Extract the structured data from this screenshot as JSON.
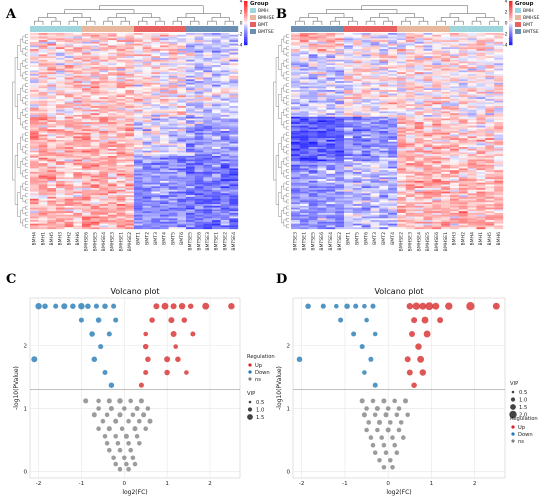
{
  "panels": {
    "A": "A",
    "B": "B",
    "C": "C",
    "D": "D"
  },
  "heatmap_legend": {
    "group_title": "Group",
    "groups": [
      "BMH",
      "BMHSE",
      "BMT",
      "BMTSE"
    ],
    "scale_ticks": [
      "4",
      "2",
      "0",
      "-2",
      "-4"
    ]
  },
  "colors": {
    "BMH": "#9fd6de",
    "BMHSE": "#e8b79c",
    "BMT": "#e86060",
    "BMTSE": "#6a8fb3",
    "up": "#d62728",
    "down": "#1f77b4",
    "ns": "#808080",
    "heat_high": "#ff0000",
    "heat_mid": "#ffffff",
    "heat_low": "#0000ff"
  },
  "chart_data": [
    {
      "type": "heatmap",
      "panel": "A",
      "columns": [
        "BMH4",
        "BMH1",
        "BMH5",
        "BMH3",
        "BMH2",
        "BMH6",
        "BMHSE6",
        "BMHSE5",
        "BMHSE4",
        "BMHSE3",
        "BMHSE1",
        "BMHSE2",
        "BMT1",
        "BMT2",
        "BMT3",
        "BMT4",
        "BMT5",
        "BMT6",
        "BMTSE5",
        "BMTSE6",
        "BMTSE3",
        "BMTSE1",
        "BMTSE2",
        "BMTSE4"
      ],
      "column_groups": [
        "BMH",
        "BMH",
        "BMH",
        "BMH",
        "BMH",
        "BMH",
        "BMHSE",
        "BMHSE",
        "BMHSE",
        "BMHSE",
        "BMHSE",
        "BMHSE",
        "BMT",
        "BMT",
        "BMT",
        "BMT",
        "BMT",
        "BMT",
        "BMTSE",
        "BMTSE",
        "BMTSE",
        "BMTSE",
        "BMTSE",
        "BMTSE"
      ],
      "color_range": [
        -4,
        4
      ]
    },
    {
      "type": "heatmap",
      "panel": "B",
      "columns": [
        "BMTSE3",
        "BMTSE1",
        "BMTSE5",
        "BMTSE6",
        "BMTSE4",
        "BMTSE2",
        "BMT1",
        "BMT5",
        "BMT6",
        "BMT3",
        "BMT2",
        "BMT4",
        "BMHSE2",
        "BMHSE3",
        "BMHSE4",
        "BMHSE5",
        "BMHSE6",
        "BMHSE1",
        "BMH3",
        "BMH2",
        "BMH4",
        "BMH1",
        "BMH5",
        "BMH6"
      ],
      "column_groups": [
        "BMTSE",
        "BMTSE",
        "BMTSE",
        "BMTSE",
        "BMTSE",
        "BMTSE",
        "BMT",
        "BMT",
        "BMT",
        "BMT",
        "BMT",
        "BMT",
        "BMHSE",
        "BMHSE",
        "BMHSE",
        "BMHSE",
        "BMHSE",
        "BMHSE",
        "BMH",
        "BMH",
        "BMH",
        "BMH",
        "BMH",
        "BMH"
      ],
      "color_range": [
        -4,
        4
      ]
    },
    {
      "type": "scatter",
      "panel": "C",
      "title": "Volcano plot",
      "xlabel": "log2(FC)",
      "ylabel": "-log10(PValue)",
      "xlim": [
        -2.2,
        2.7
      ],
      "ylim": [
        -0.1,
        2.75
      ],
      "xticks": [
        -2,
        -1,
        0,
        1,
        2
      ],
      "yticks": [
        0,
        1,
        2
      ],
      "grid": true,
      "legend_placement": "right",
      "regulation_title": "Regulation",
      "regulation_labels": [
        "Up",
        "Down",
        "ns"
      ],
      "vip_title": "VIP",
      "vip_sizes": [
        "0.5",
        "1.0",
        "1.5"
      ],
      "threshold_y": 1.3,
      "series": [
        {
          "name": "Up",
          "points": [
            [
              0.75,
              2.62,
              1.3
            ],
            [
              0.95,
              2.62,
              1.5
            ],
            [
              1.15,
              2.62,
              1.3
            ],
            [
              1.35,
              2.62,
              1.4
            ],
            [
              1.55,
              2.62,
              1.2
            ],
            [
              1.9,
              2.62,
              1.5
            ],
            [
              2.5,
              2.62,
              1.4
            ],
            [
              0.65,
              2.4,
              1.2
            ],
            [
              1.1,
              2.4,
              1.3
            ],
            [
              1.4,
              2.4,
              1.2
            ],
            [
              0.5,
              2.18,
              1.0
            ],
            [
              1.15,
              2.18,
              1.3
            ],
            [
              1.6,
              2.18,
              1.1
            ],
            [
              0.5,
              1.98,
              1.2
            ],
            [
              1.2,
              1.98,
              1.0
            ],
            [
              0.55,
              1.78,
              1.2
            ],
            [
              1.0,
              1.78,
              1.3
            ],
            [
              1.25,
              1.78,
              1.2
            ],
            [
              0.5,
              1.57,
              1.1
            ],
            [
              1.0,
              1.57,
              1.2
            ],
            [
              1.45,
              1.57,
              1.0
            ],
            [
              0.4,
              1.37,
              1.1
            ]
          ]
        },
        {
          "name": "Down",
          "points": [
            [
              -2.0,
              2.62,
              1.4
            ],
            [
              -1.85,
              2.62,
              1.2
            ],
            [
              -1.6,
              2.62,
              1.1
            ],
            [
              -1.4,
              2.62,
              1.3
            ],
            [
              -1.2,
              2.62,
              1.2
            ],
            [
              -1.0,
              2.62,
              1.4
            ],
            [
              -0.85,
              2.62,
              1.2
            ],
            [
              -0.65,
              2.62,
              1.1
            ],
            [
              -0.45,
              2.62,
              1.2
            ],
            [
              -0.25,
              2.62,
              1.1
            ],
            [
              -1.0,
              2.4,
              1.1
            ],
            [
              -0.6,
              2.4,
              1.2
            ],
            [
              -0.2,
              2.4,
              1.1
            ],
            [
              -0.75,
              2.18,
              1.2
            ],
            [
              -0.35,
              2.18,
              1.1
            ],
            [
              -0.55,
              1.98,
              1.1
            ],
            [
              -2.1,
              1.78,
              1.3
            ],
            [
              -0.7,
              1.78,
              1.2
            ],
            [
              -0.45,
              1.57,
              1.1
            ],
            [
              -0.3,
              1.37,
              1.2
            ]
          ]
        },
        {
          "name": "ns",
          "points": [
            [
              -0.9,
              1.12,
              1.1
            ],
            [
              -0.6,
              1.12,
              1.0
            ],
            [
              -0.35,
              1.12,
              1.1
            ],
            [
              -0.1,
              1.12,
              1.2
            ],
            [
              0.15,
              1.12,
              1.0
            ],
            [
              0.4,
              1.12,
              1.1
            ],
            [
              -0.6,
              1.0,
              1.0
            ],
            [
              -0.3,
              1.0,
              1.1
            ],
            [
              0.0,
              1.0,
              1.0
            ],
            [
              0.3,
              1.0,
              1.1
            ],
            [
              0.55,
              1.0,
              1.0
            ],
            [
              -0.7,
              0.9,
              1.1
            ],
            [
              -0.4,
              0.9,
              1.0
            ],
            [
              -0.1,
              0.9,
              1.1
            ],
            [
              0.2,
              0.9,
              1.0
            ],
            [
              0.45,
              0.9,
              1.1
            ],
            [
              -0.5,
              0.8,
              1.0
            ],
            [
              -0.2,
              0.8,
              1.1
            ],
            [
              0.1,
              0.8,
              1.0
            ],
            [
              0.35,
              0.8,
              1.0
            ],
            [
              0.6,
              0.8,
              1.1
            ],
            [
              -0.6,
              0.68,
              1.0
            ],
            [
              -0.35,
              0.68,
              1.1
            ],
            [
              -0.05,
              0.68,
              1.0
            ],
            [
              0.25,
              0.68,
              1.1
            ],
            [
              0.5,
              0.68,
              1.0
            ],
            [
              -0.45,
              0.56,
              1.0
            ],
            [
              -0.2,
              0.56,
              1.0
            ],
            [
              0.05,
              0.56,
              1.1
            ],
            [
              0.3,
              0.56,
              1.0
            ],
            [
              -0.4,
              0.45,
              1.0
            ],
            [
              -0.15,
              0.45,
              1.0
            ],
            [
              0.1,
              0.45,
              1.0
            ],
            [
              0.35,
              0.45,
              1.0
            ],
            [
              -0.35,
              0.34,
              1.0
            ],
            [
              -0.1,
              0.34,
              1.0
            ],
            [
              0.15,
              0.34,
              1.0
            ],
            [
              -0.25,
              0.22,
              1.0
            ],
            [
              0.0,
              0.22,
              1.0
            ],
            [
              0.2,
              0.22,
              1.0
            ],
            [
              -0.2,
              0.12,
              1.0
            ],
            [
              0.05,
              0.12,
              1.0
            ],
            [
              0.25,
              0.12,
              1.0
            ],
            [
              -0.1,
              0.04,
              1.0
            ],
            [
              0.1,
              0.04,
              1.0
            ]
          ]
        }
      ]
    },
    {
      "type": "scatter",
      "panel": "D",
      "title": "Volcano plot",
      "xlabel": "log2(FC)",
      "ylabel": "-log10(PValue)",
      "xlim": [
        -2.2,
        2.7
      ],
      "ylim": [
        -0.1,
        2.75
      ],
      "xticks": [
        -2,
        -1,
        0,
        1,
        2
      ],
      "yticks": [
        0,
        1,
        2
      ],
      "grid": true,
      "legend_placement": "right",
      "regulation_title": "Regulation",
      "regulation_labels": [
        "Up",
        "Down",
        "ns"
      ],
      "vip_title": "VIP",
      "vip_sizes": [
        "0.5",
        "1.0",
        "1.5",
        "2.0"
      ],
      "threshold_y": 1.3,
      "series": [
        {
          "name": "Up",
          "points": [
            [
              0.5,
              2.62,
              1.4
            ],
            [
              0.65,
              2.62,
              1.6
            ],
            [
              0.8,
              2.62,
              1.5
            ],
            [
              0.95,
              2.62,
              1.7
            ],
            [
              1.1,
              2.62,
              1.5
            ],
            [
              1.4,
              2.62,
              1.6
            ],
            [
              1.9,
              2.62,
              1.8
            ],
            [
              2.5,
              2.62,
              1.5
            ],
            [
              0.6,
              2.4,
              1.3
            ],
            [
              0.85,
              2.4,
              1.5
            ],
            [
              1.2,
              2.4,
              1.3
            ],
            [
              0.55,
              2.18,
              1.3
            ],
            [
              0.9,
              2.18,
              1.5
            ],
            [
              0.7,
              1.98,
              1.4
            ],
            [
              0.45,
              1.78,
              1.3
            ],
            [
              0.75,
              1.78,
              1.5
            ],
            [
              0.5,
              1.57,
              1.3
            ],
            [
              0.8,
              1.57,
              1.4
            ],
            [
              0.6,
              1.37,
              1.2
            ]
          ]
        },
        {
          "name": "Down",
          "points": [
            [
              -1.85,
              2.62,
              1.2
            ],
            [
              -1.5,
              2.62,
              1.1
            ],
            [
              -1.2,
              2.62,
              1.0
            ],
            [
              -0.95,
              2.62,
              1.2
            ],
            [
              -0.75,
              2.62,
              1.1
            ],
            [
              -0.55,
              2.62,
              1.0
            ],
            [
              -0.35,
              2.62,
              1.1
            ],
            [
              -1.1,
              2.4,
              1.1
            ],
            [
              -0.5,
              2.4,
              1.0
            ],
            [
              -0.8,
              2.18,
              1.1
            ],
            [
              -0.3,
              2.18,
              1.0
            ],
            [
              -0.6,
              1.98,
              1.1
            ],
            [
              -2.05,
              1.78,
              1.2
            ],
            [
              -0.4,
              1.78,
              1.1
            ],
            [
              -0.55,
              1.57,
              1.0
            ],
            [
              -0.3,
              1.37,
              1.1
            ]
          ]
        },
        {
          "name": "ns",
          "points": [
            [
              -0.6,
              1.12,
              1.1
            ],
            [
              -0.35,
              1.12,
              1.0
            ],
            [
              -0.1,
              1.12,
              1.1
            ],
            [
              0.15,
              1.12,
              1.0
            ],
            [
              0.4,
              1.12,
              1.1
            ],
            [
              -0.5,
              1.0,
              1.0
            ],
            [
              -0.25,
              1.0,
              1.1
            ],
            [
              0.0,
              1.0,
              1.0
            ],
            [
              0.25,
              1.0,
              1.0
            ],
            [
              -0.55,
              0.9,
              1.1
            ],
            [
              -0.3,
              0.9,
              1.0
            ],
            [
              -0.05,
              0.9,
              1.1
            ],
            [
              0.2,
              0.9,
              1.0
            ],
            [
              0.45,
              0.9,
              1.0
            ],
            [
              -0.45,
              0.78,
              1.0
            ],
            [
              -0.2,
              0.78,
              1.1
            ],
            [
              0.05,
              0.78,
              1.0
            ],
            [
              0.3,
              0.78,
              1.0
            ],
            [
              -0.5,
              0.66,
              1.0
            ],
            [
              -0.25,
              0.66,
              1.0
            ],
            [
              0.0,
              0.66,
              1.1
            ],
            [
              0.25,
              0.66,
              1.0
            ],
            [
              -0.4,
              0.54,
              1.0
            ],
            [
              -0.15,
              0.54,
              1.0
            ],
            [
              0.1,
              0.54,
              1.0
            ],
            [
              0.35,
              0.54,
              1.0
            ],
            [
              -0.35,
              0.42,
              1.0
            ],
            [
              -0.1,
              0.42,
              1.0
            ],
            [
              0.15,
              0.42,
              1.0
            ],
            [
              -0.3,
              0.3,
              1.0
            ],
            [
              -0.05,
              0.3,
              1.0
            ],
            [
              0.2,
              0.3,
              1.0
            ],
            [
              -0.2,
              0.18,
              1.0
            ],
            [
              0.05,
              0.18,
              1.0
            ],
            [
              -0.1,
              0.07,
              1.0
            ],
            [
              0.1,
              0.07,
              1.0
            ]
          ]
        }
      ]
    }
  ]
}
